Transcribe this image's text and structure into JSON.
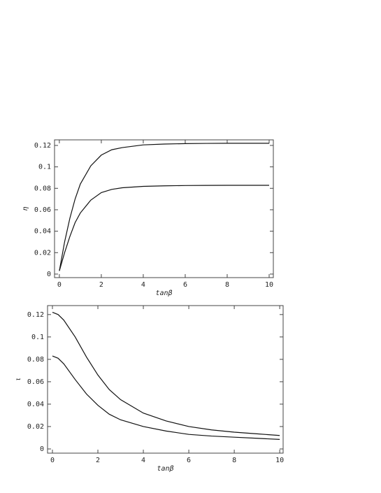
{
  "chart_data": [
    {
      "type": "line",
      "y_label": "η",
      "x_label": "tanβ",
      "xlim": [
        -0.23,
        10.2
      ],
      "xticks": [
        0,
        2,
        4,
        6,
        8,
        10
      ],
      "ylim": [
        -0.0033,
        0.1252
      ],
      "yticks": [
        0,
        0.02,
        0.04,
        0.06,
        0.08,
        0.1,
        0.12
      ],
      "x": [
        0,
        0.25,
        0.5,
        0.75,
        1,
        1.5,
        2,
        2.5,
        3,
        4,
        5,
        6,
        7,
        8,
        9,
        10
      ],
      "series": [
        {
          "color": "#111111",
          "values": [
            0.003,
            0.03,
            0.052,
            0.07,
            0.084,
            0.101,
            0.111,
            0.116,
            0.118,
            0.1205,
            0.1213,
            0.1217,
            0.1219,
            0.122,
            0.122,
            0.122
          ]
        },
        {
          "color": "#111111",
          "values": [
            0.003,
            0.02,
            0.035,
            0.048,
            0.057,
            0.069,
            0.076,
            0.079,
            0.0805,
            0.0818,
            0.0823,
            0.0826,
            0.0827,
            0.0828,
            0.0828,
            0.0828
          ]
        }
      ]
    },
    {
      "type": "line",
      "y_label": "ι",
      "x_label": "tanβ",
      "xlim": [
        -0.215,
        10.15
      ],
      "xticks": [
        0,
        2,
        4,
        6,
        8,
        10
      ],
      "ylim": [
        -0.00375,
        0.128
      ],
      "yticks": [
        0,
        0.02,
        0.04,
        0.06,
        0.08,
        0.1,
        0.12
      ],
      "x": [
        0,
        0.25,
        0.5,
        1,
        1.5,
        2,
        2.5,
        3,
        4,
        5,
        6,
        7,
        8,
        9,
        10
      ],
      "series": [
        {
          "color": "#111111",
          "values": [
            0.122,
            0.12,
            0.115,
            0.1,
            0.082,
            0.066,
            0.053,
            0.044,
            0.032,
            0.025,
            0.02,
            0.017,
            0.015,
            0.0135,
            0.012
          ]
        },
        {
          "color": "#111111",
          "values": [
            0.083,
            0.081,
            0.076,
            0.062,
            0.049,
            0.039,
            0.031,
            0.026,
            0.02,
            0.016,
            0.013,
            0.0115,
            0.0105,
            0.0095,
            0.0085
          ]
        }
      ]
    }
  ]
}
